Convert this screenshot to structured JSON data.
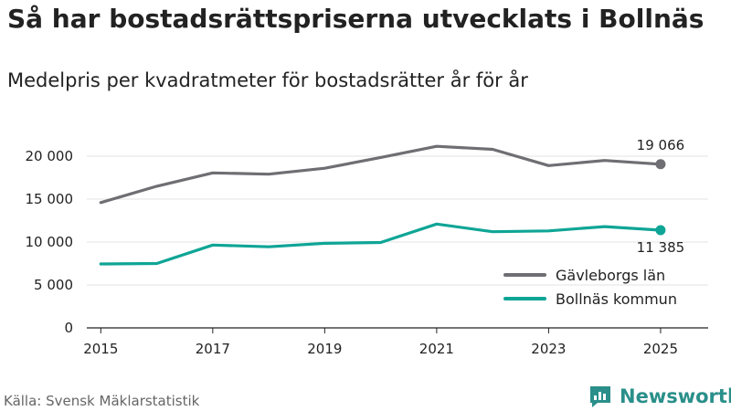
{
  "chart_data": {
    "type": "line",
    "title": "Så har bostadsrättspriserna utvecklats i Bollnäs",
    "subtitle": "Medelpris per kvadratmeter för bostadsrätter år för år",
    "x": [
      2015,
      2016,
      2017,
      2018,
      2019,
      2020,
      2021,
      2022,
      2023,
      2024,
      2025
    ],
    "x_tick_labels": [
      "2015",
      "2017",
      "2019",
      "2021",
      "2023",
      "2025"
    ],
    "x_tick_values": [
      2015,
      2017,
      2019,
      2021,
      2023,
      2025
    ],
    "ylim": [
      0,
      20000
    ],
    "y_tick_values": [
      0,
      5000,
      10000,
      15000,
      20000
    ],
    "y_tick_labels": [
      "0",
      "5 000",
      "10 000",
      "15 000",
      "20 000"
    ],
    "grid": true,
    "legend_position": "bottom-right",
    "series": [
      {
        "name": "Gävleborgs län",
        "color": "#6e6e73",
        "values": [
          14600,
          16500,
          18050,
          17900,
          18600,
          19850,
          21150,
          20800,
          18900,
          19500,
          19066
        ],
        "end_label": "19 066"
      },
      {
        "name": "Bollnäs kommun",
        "color": "#0fa596",
        "values": [
          7450,
          7500,
          9650,
          9450,
          9850,
          9950,
          12100,
          11200,
          11300,
          11800,
          11385
        ],
        "end_label": "11 385"
      }
    ]
  },
  "footer": {
    "source": "Källa: Svensk Mäklarstatistik",
    "brand": "Newsworthy",
    "brand_color": "#2a8f8a"
  }
}
